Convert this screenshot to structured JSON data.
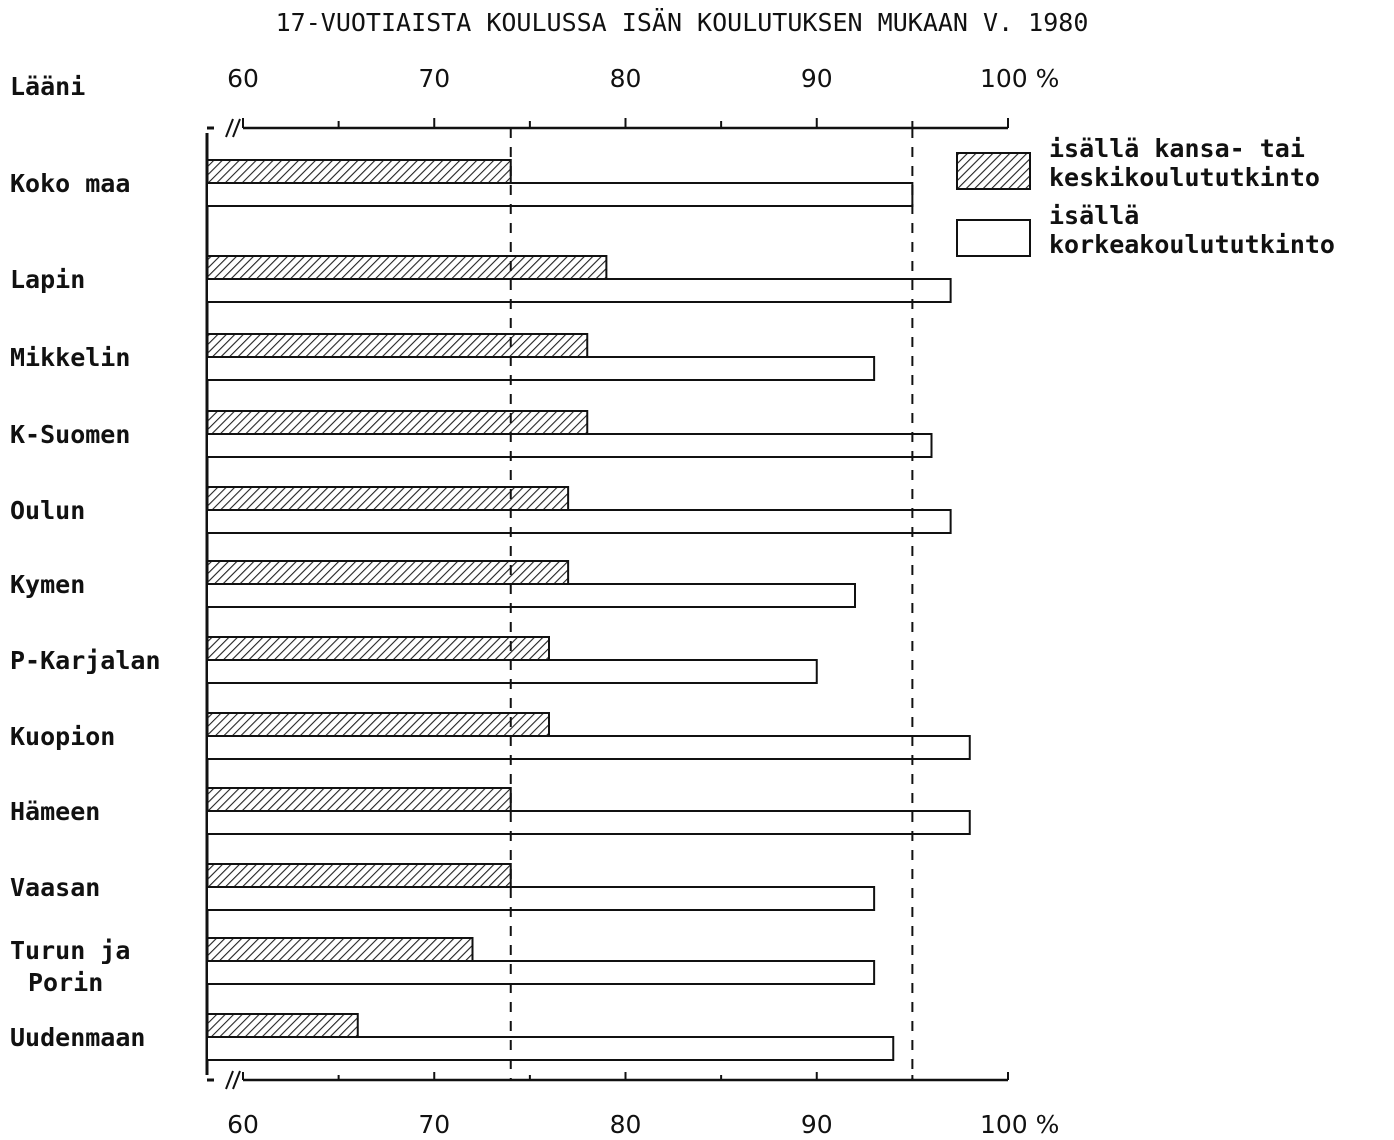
{
  "chart_data": {
    "type": "bar",
    "orientation": "horizontal",
    "title": "17-VUOTIAISTA KOULUSSA ISÄN KOULUTUKSEN MUKAAN V. 1980",
    "category_axis_label": "Lääni",
    "categories": [
      "Koko maa",
      "Lapin",
      "Mikkelin",
      "K-Suomen",
      "Oulun",
      "Kymen",
      "P-Karjalan",
      "Kuopion",
      "Hämeen",
      "Vaasan",
      "Turun ja\nPorin",
      "Uudenmaan"
    ],
    "x_ticks": [
      "60",
      "70",
      "80",
      "90",
      "100 %"
    ],
    "xlim": [
      60,
      100
    ],
    "axis_break": true,
    "reference_lines": [
      74,
      95
    ],
    "grid": false,
    "legend_position": "top-right",
    "series": [
      {
        "name": "isällä kansa- tai keskikoulututkinto",
        "legend_lines": [
          "isällä kansa- tai",
          "keskikoulututkinto"
        ],
        "fill": "hatched",
        "values": [
          74,
          79,
          78,
          78,
          77,
          77,
          76,
          76,
          74,
          74,
          72,
          66
        ]
      },
      {
        "name": "isällä korkeakoulututkinto",
        "legend_lines": [
          "isällä",
          "korkeakoulututkinto"
        ],
        "fill": "white",
        "values": [
          95,
          97,
          93,
          96,
          97,
          92,
          90,
          98,
          98,
          93,
          93,
          94
        ]
      }
    ]
  }
}
